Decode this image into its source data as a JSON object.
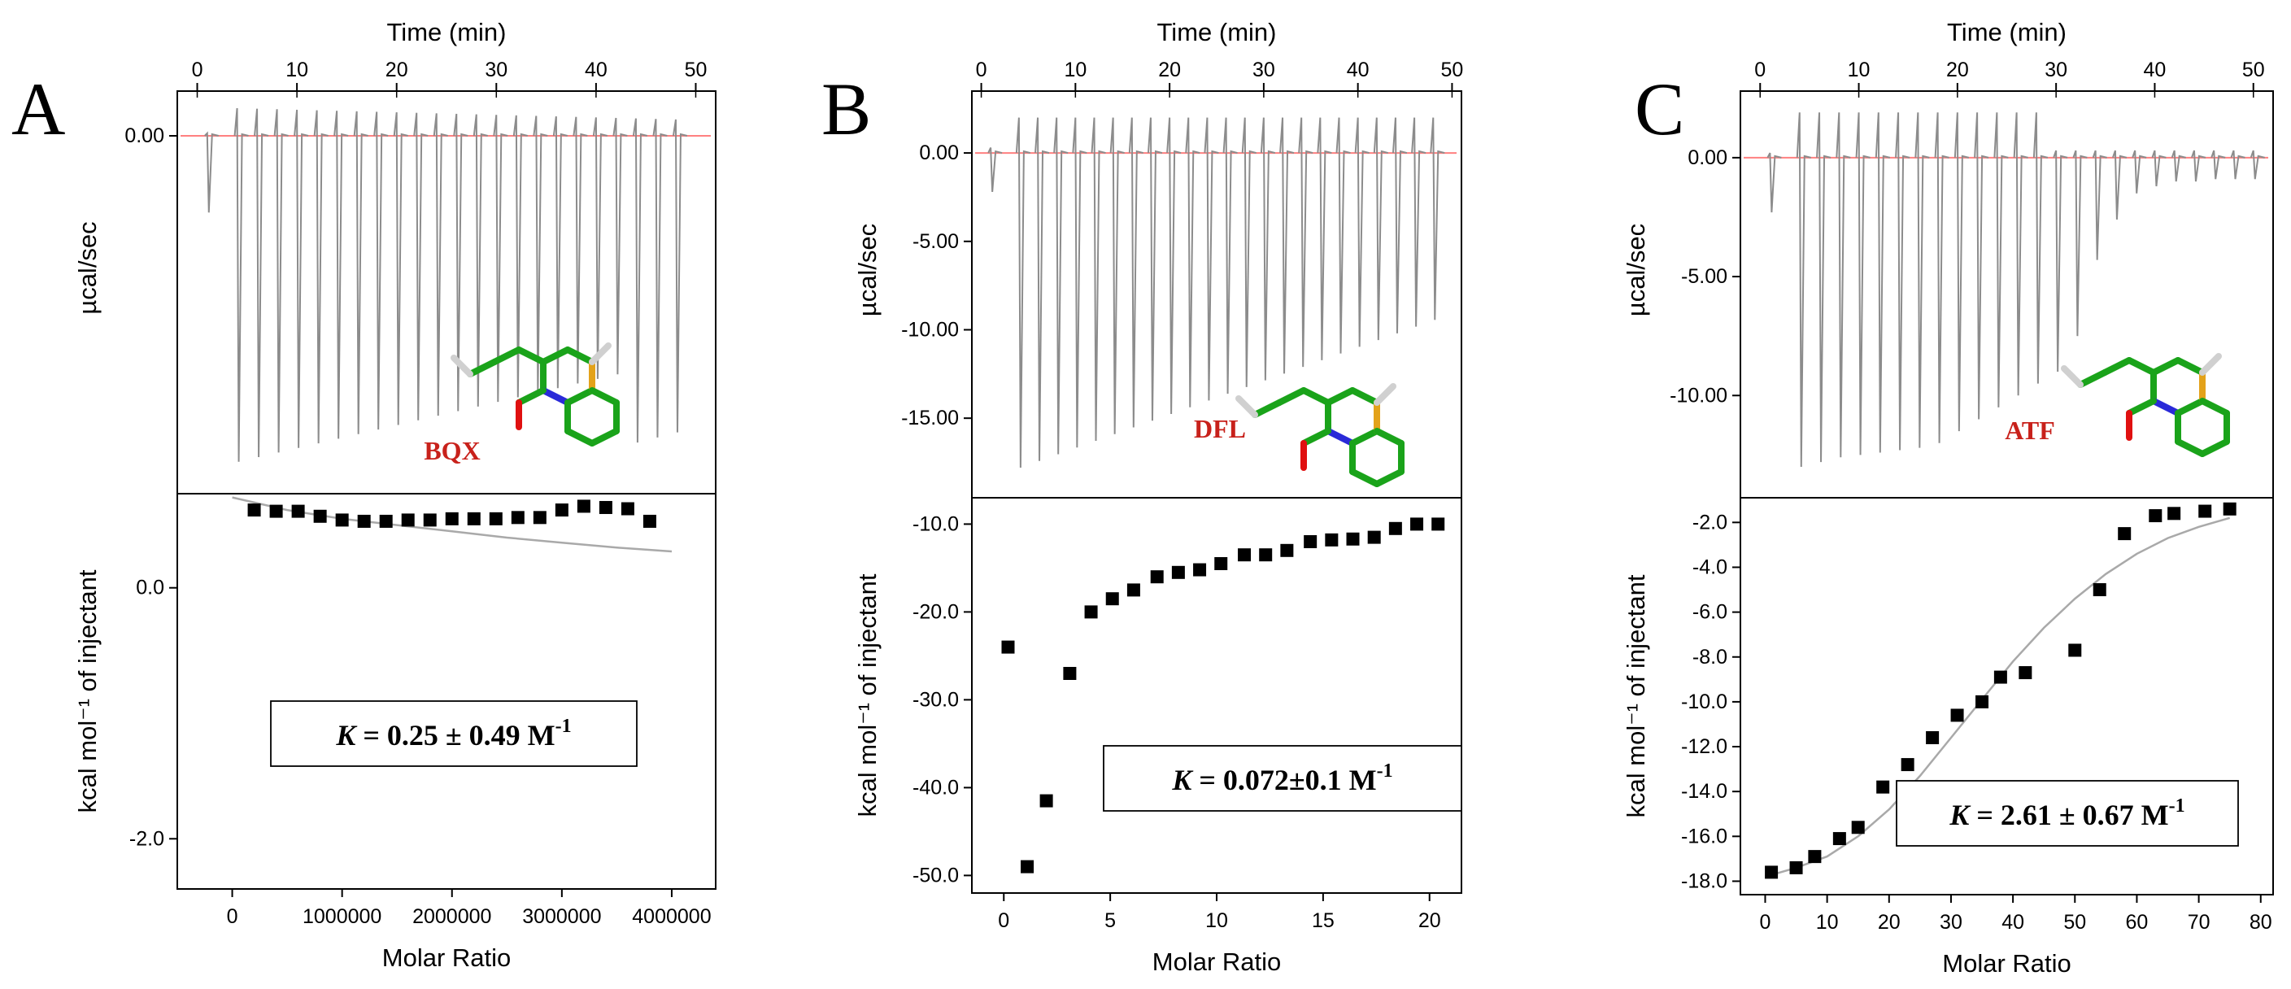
{
  "chart_data": [
    {
      "panel": "A",
      "type": "scatter",
      "top": {
        "xlabel": "Time (min)",
        "ylabel": "µcal/sec",
        "xlim": [
          -2,
          52
        ],
        "xticks": [
          "0",
          "10",
          "20",
          "30",
          "40",
          "50"
        ],
        "yticks": [
          "0.00"
        ],
        "baseline_y": 0.0,
        "peak_times": [
          1,
          4,
          6,
          8,
          10,
          12,
          14,
          16,
          18,
          20,
          22,
          24,
          26,
          28,
          30,
          32,
          34,
          36,
          38,
          40,
          42,
          44,
          46,
          48
        ],
        "compound_label": "BQX"
      },
      "bottom": {
        "xlabel": "Molar Ratio",
        "ylabel": "kcal mol⁻¹ of injectant",
        "xticks": [
          "0",
          "1000000",
          "2000000",
          "3000000",
          "4000000"
        ],
        "yticks": [
          "0.0",
          "-2.0"
        ],
        "xlim": [
          -500000,
          4400000
        ],
        "ylim": [
          -2.4,
          0.75
        ],
        "points": {
          "x": [
            200000,
            400000,
            600000,
            800000,
            1000000,
            1200000,
            1400000,
            1600000,
            1800000,
            2000000,
            2200000,
            2400000,
            2600000,
            2800000,
            3000000,
            3200000,
            3400000,
            3600000,
            3800000
          ],
          "y": [
            0.62,
            0.61,
            0.61,
            0.57,
            0.54,
            0.53,
            0.53,
            0.54,
            0.54,
            0.55,
            0.55,
            0.55,
            0.56,
            0.56,
            0.62,
            0.65,
            0.64,
            0.63,
            0.53
          ]
        },
        "fit": {
          "x": [
            0,
            500000,
            1000000,
            1500000,
            2000000,
            2500000,
            3000000,
            3500000,
            4000000
          ],
          "y": [
            0.72,
            0.62,
            0.55,
            0.5,
            0.45,
            0.4,
            0.36,
            0.32,
            0.29
          ]
        },
        "annotation": {
          "k_symbol": "K",
          "k_value": " = 0.25 ± 0.49 M",
          "k_exp": "-1"
        }
      }
    },
    {
      "panel": "B",
      "type": "scatter",
      "top": {
        "xlabel": "Time (min)",
        "ylabel": "µcal/sec",
        "xlim": [
          -1,
          51
        ],
        "xticks": [
          "0",
          "10",
          "20",
          "30",
          "40",
          "50"
        ],
        "yticks": [
          "0.00",
          "-5.00",
          "-10.00",
          "-15.00"
        ],
        "ylim": [
          -19.5,
          3.5
        ],
        "baseline_y": 0.0,
        "peak_times": [
          1,
          4,
          6,
          8,
          10,
          12,
          14,
          16,
          18,
          20,
          22,
          24,
          26,
          28,
          30,
          32,
          34,
          36,
          38,
          40,
          42,
          44,
          46,
          48
        ],
        "compound_label": "DFL"
      },
      "bottom": {
        "xlabel": "Molar Ratio",
        "ylabel": "kcal mol⁻¹ of injectant",
        "xticks": [
          "0",
          "5",
          "10",
          "15",
          "20"
        ],
        "yticks": [
          "-10.0",
          "-20.0",
          "-30.0",
          "-40.0",
          "-50.0"
        ],
        "xlim": [
          -1.5,
          21.5
        ],
        "ylim": [
          -52,
          -7
        ],
        "points": {
          "x": [
            0.2,
            1.1,
            2.0,
            3.1,
            4.1,
            5.1,
            6.1,
            7.2,
            8.2,
            9.2,
            10.2,
            11.3,
            12.3,
            13.3,
            14.4,
            15.4,
            16.4,
            17.4,
            18.4,
            19.4,
            20.4
          ],
          "y": [
            -24.0,
            -49.0,
            -41.5,
            -27.0,
            -20.0,
            -18.5,
            -17.5,
            -16.0,
            -15.5,
            -15.2,
            -14.5,
            -13.5,
            -13.5,
            -13.0,
            -12.0,
            -11.8,
            -11.7,
            -11.5,
            -10.5,
            -10.0,
            -10.0
          ]
        },
        "annotation": {
          "k_symbol": "K",
          "k_value": " = 0.072±0.1 M",
          "k_exp": "-1"
        }
      }
    },
    {
      "panel": "C",
      "type": "scatter",
      "top": {
        "xlabel": "Time (min)",
        "ylabel": "µcal/sec",
        "xlim": [
          -2,
          52
        ],
        "xticks": [
          "0",
          "10",
          "20",
          "30",
          "40",
          "50"
        ],
        "yticks": [
          "0.00",
          "-5.00",
          "-10.00"
        ],
        "ylim": [
          -14.3,
          2.8
        ],
        "baseline_y": 0.0,
        "peak_times": [
          1,
          4,
          6,
          8,
          10,
          12,
          14,
          16,
          18,
          20,
          22,
          24,
          26,
          28,
          30,
          32,
          34,
          36,
          38,
          40,
          42,
          44,
          46,
          48,
          50
        ],
        "peak_depths": [
          -2.3,
          -13.0,
          -12.8,
          -12.6,
          -12.5,
          -12.4,
          -12.3,
          -12.2,
          -12.0,
          -11.5,
          -11.0,
          -10.5,
          -10.0,
          -9.5,
          -9.0,
          -7.5,
          -4.3,
          -2.6,
          -1.5,
          -1.2,
          -1.0,
          -1.0,
          -0.9,
          -0.9,
          -0.9
        ],
        "compound_label": "ATF"
      },
      "bottom": {
        "xlabel": "Molar Ratio",
        "ylabel": "kcal mol⁻¹ of injectant",
        "xticks": [
          "0",
          "10",
          "20",
          "30",
          "40",
          "50",
          "60",
          "70",
          "80"
        ],
        "yticks": [
          "-2.0",
          "-4.0",
          "-6.0",
          "-8.0",
          "-10.0",
          "-12.0",
          "-14.0",
          "-16.0",
          "-18.0"
        ],
        "xlim": [
          -4,
          82
        ],
        "ylim": [
          -18.6,
          -0.9
        ],
        "points": {
          "x": [
            1,
            5,
            8,
            12,
            15,
            19,
            23,
            27,
            31,
            35,
            38,
            42,
            50,
            54,
            58,
            63,
            66,
            71,
            75
          ],
          "y": [
            -17.6,
            -17.4,
            -16.9,
            -16.1,
            -15.6,
            -13.8,
            -12.8,
            -11.6,
            -10.6,
            -10.0,
            -8.9,
            -8.7,
            -7.7,
            -5.0,
            -2.5,
            -1.7,
            -1.6,
            -1.5,
            -1.4
          ]
        },
        "fit": {
          "x": [
            0,
            5,
            10,
            15,
            20,
            25,
            30,
            35,
            40,
            45,
            50,
            55,
            60,
            65,
            70,
            75
          ],
          "y": [
            -17.8,
            -17.4,
            -16.9,
            -16.0,
            -14.8,
            -13.3,
            -11.6,
            -9.9,
            -8.2,
            -6.7,
            -5.4,
            -4.3,
            -3.4,
            -2.7,
            -2.2,
            -1.8
          ]
        },
        "annotation": {
          "k_symbol": "K",
          "k_value": " = 2.61 ± 0.67 M",
          "k_exp": "-1"
        }
      }
    }
  ]
}
